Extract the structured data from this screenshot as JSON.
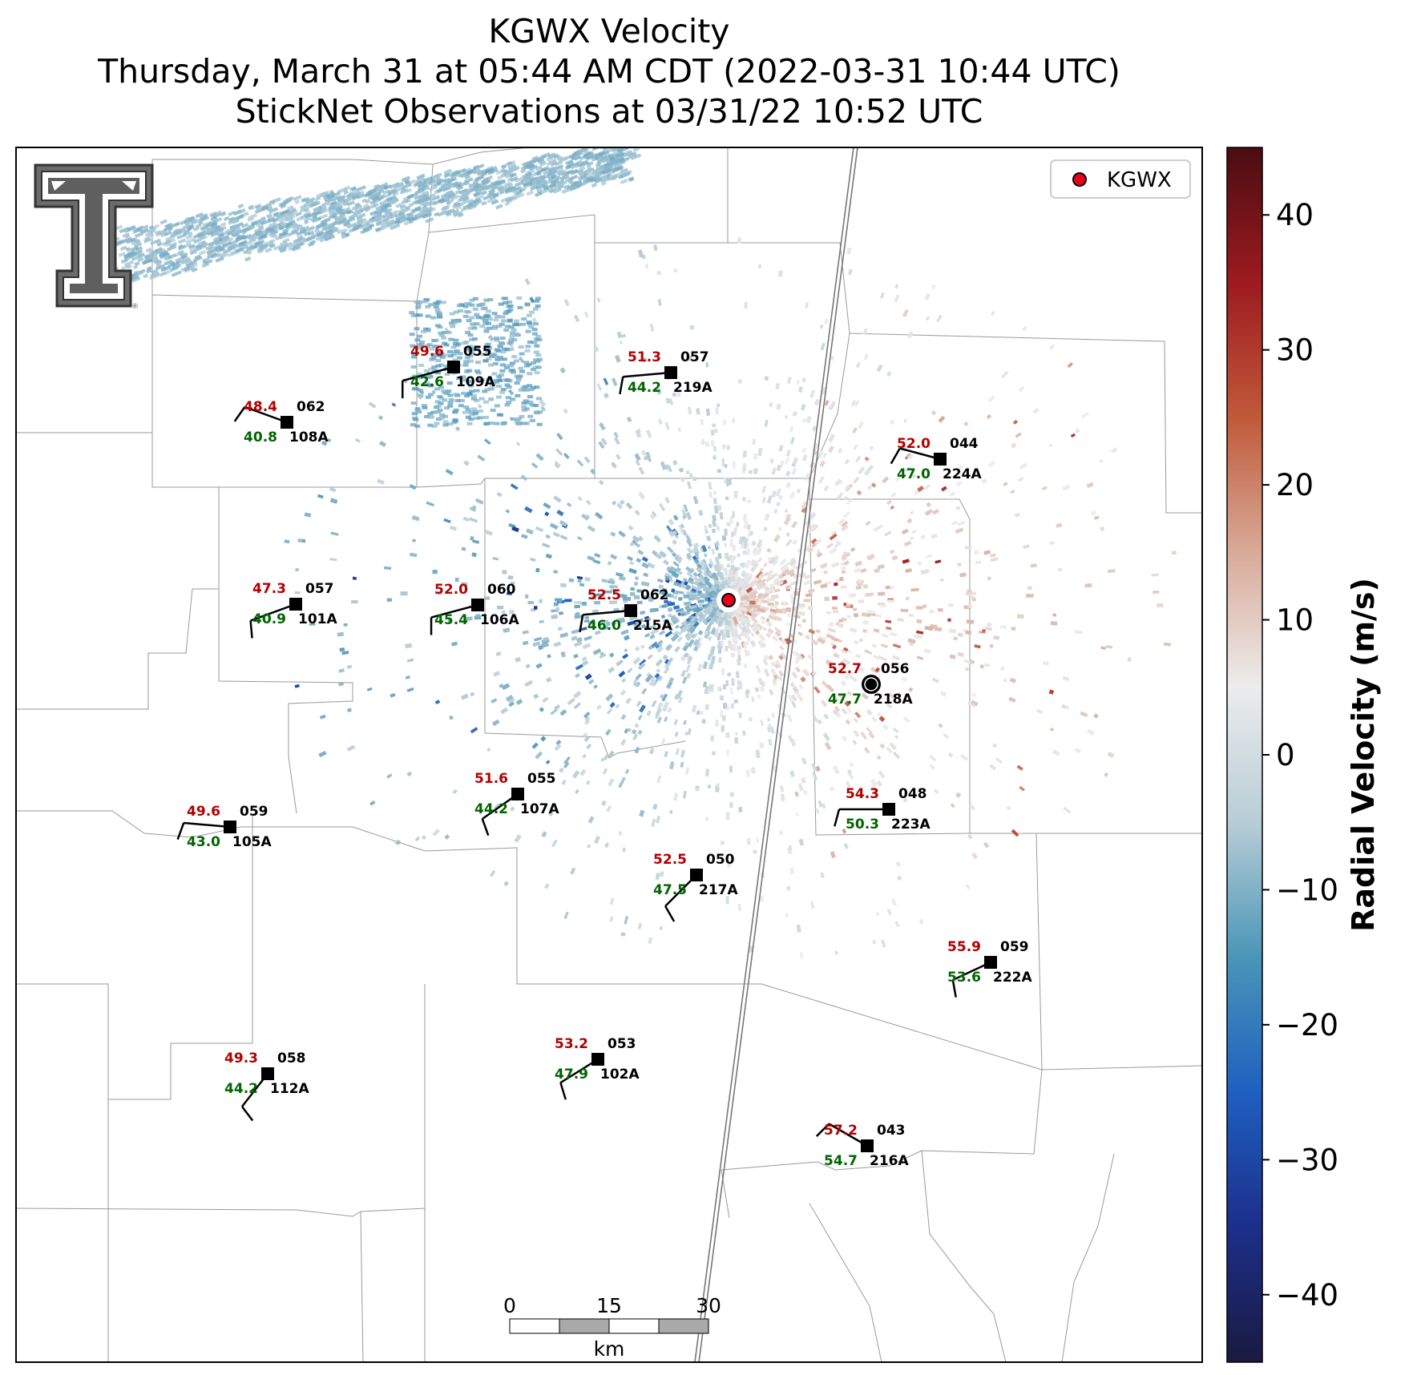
{
  "title": {
    "line1": "KGWX Velocity",
    "line2": "Thursday, March 31 at 05:44 AM CDT (2022-03-31 10:44 UTC)",
    "line3": "StickNet Observations at 03/31/22 10:52 UTC"
  },
  "legend": {
    "label": "KGWX",
    "marker_color": "#e8001c"
  },
  "colorbar": {
    "label": "Radial Velocity (m/s)",
    "min": -45,
    "max": 45,
    "ticks": [
      40,
      30,
      20,
      10,
      0,
      -10,
      -20,
      -30,
      -40
    ],
    "tick_labels": [
      "40",
      "30",
      "20",
      "10",
      "0",
      "−10",
      "−20",
      "−30",
      "−40"
    ],
    "colors": [
      "#1a1a40",
      "#1c2f8a",
      "#1f5fc0",
      "#4a95b8",
      "#b7cdd6",
      "#ececec",
      "#d8aa98",
      "#c0593a",
      "#9d1a20",
      "#4a0d12"
    ]
  },
  "scalebar": {
    "tick_labels": [
      "0",
      "15",
      "30"
    ],
    "unit": "km"
  },
  "logo": {
    "name": "texas-tech-double-t-logo"
  },
  "stations": [
    {
      "id": "108A",
      "top": "48.4",
      "dir": "062",
      "bottom": "40.8"
    },
    {
      "id": "109A",
      "top": "49.6",
      "dir": "055",
      "bottom": "42.6"
    },
    {
      "id": "219A",
      "top": "51.3",
      "dir": "057",
      "bottom": "44.2"
    },
    {
      "id": "224A",
      "top": "52.0",
      "dir": "044",
      "bottom": "47.0"
    },
    {
      "id": "101A",
      "top": "47.3",
      "dir": "057",
      "bottom": "40.9"
    },
    {
      "id": "106A",
      "top": "52.0",
      "dir": "060",
      "bottom": "45.4"
    },
    {
      "id": "215A",
      "top": "52.5",
      "dir": "062",
      "bottom": "46.0"
    },
    {
      "id": "218A",
      "top": "52.7",
      "dir": "056",
      "bottom": "47.7"
    },
    {
      "id": "107A",
      "top": "51.6",
      "dir": "055",
      "bottom": "44.2"
    },
    {
      "id": "105A",
      "top": "49.6",
      "dir": "059",
      "bottom": "43.0"
    },
    {
      "id": "223A",
      "top": "54.3",
      "dir": "048",
      "bottom": "50.3"
    },
    {
      "id": "217A",
      "top": "52.5",
      "dir": "050",
      "bottom": "47.5"
    },
    {
      "id": "222A",
      "top": "55.9",
      "dir": "059",
      "bottom": "53.6"
    },
    {
      "id": "112A",
      "top": "49.3",
      "dir": "058",
      "bottom": "44.2"
    },
    {
      "id": "102A",
      "top": "53.2",
      "dir": "053",
      "bottom": "47.9"
    },
    {
      "id": "216A",
      "top": "57.2",
      "dir": "043",
      "bottom": "54.7"
    }
  ]
}
